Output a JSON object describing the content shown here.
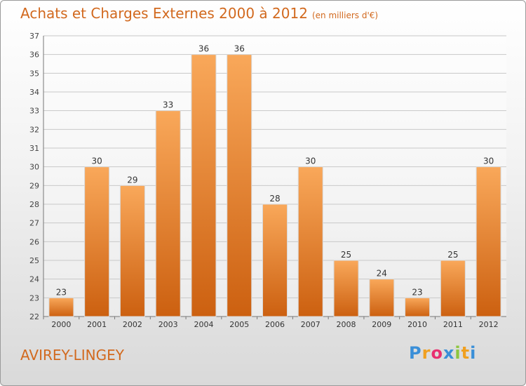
{
  "title": "Achats et Charges Externes 2000 à 2012",
  "subtitle": "(en milliers d'€)",
  "commune": "AVIREY-LINGEY",
  "logo": {
    "letters": [
      "P",
      "r",
      "o",
      "x",
      "i",
      "t",
      "i"
    ],
    "colors": [
      "#3a8fd8",
      "#f0a020",
      "#e83070",
      "#3a8fd8",
      "#8cc63f",
      "#f0a020",
      "#3a8fd8"
    ]
  },
  "colors": {
    "bar": "#f28a2e",
    "bar_light": "#f9a85a",
    "bar_dark": "#cc6010",
    "accent": "#d2691e"
  },
  "chart_data": {
    "type": "bar",
    "title": "Achats et Charges Externes 2000 à 2012",
    "categories": [
      "2000",
      "2001",
      "2002",
      "2003",
      "2004",
      "2005",
      "2006",
      "2007",
      "2008",
      "2009",
      "2010",
      "2011",
      "2012"
    ],
    "values": [
      23,
      30,
      29,
      33,
      36,
      36,
      28,
      30,
      25,
      24,
      23,
      25,
      30
    ],
    "ylim": [
      22,
      37
    ],
    "yticks": [
      22,
      23,
      24,
      25,
      26,
      27,
      28,
      29,
      30,
      31,
      32,
      33,
      34,
      35,
      36,
      37
    ],
    "grid": true,
    "xlabel": "",
    "ylabel": ""
  }
}
